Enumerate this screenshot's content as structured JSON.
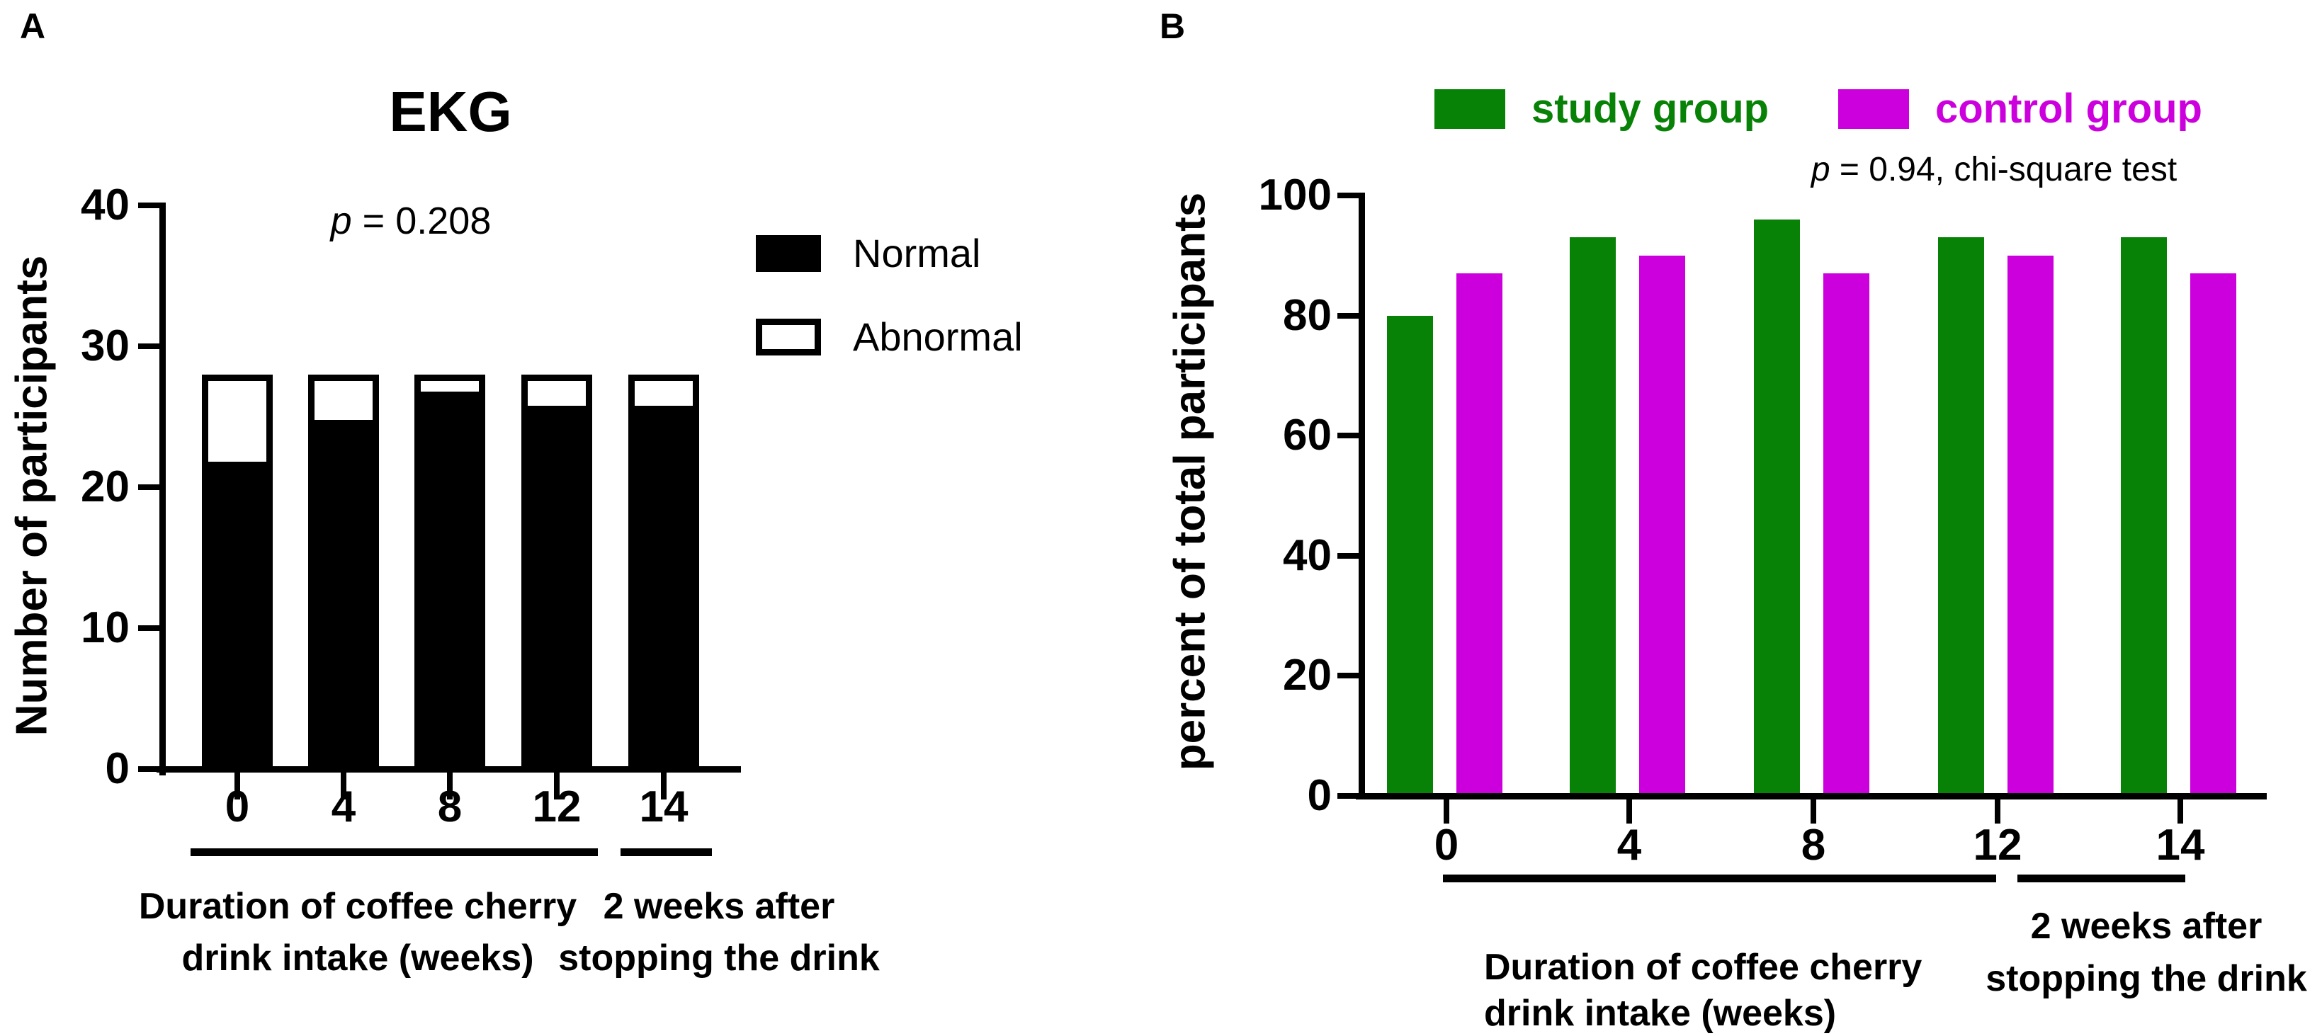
{
  "figure": {
    "panel_a": {
      "label": "A",
      "title": "EKG",
      "p_stat": {
        "symbol": "p",
        "rest": " = 0.208"
      },
      "y_axis_label": "Number of participants",
      "legend": {
        "normal_label": "Normal",
        "abnormal_label": "Abnormal"
      },
      "caption_left_line1": "Duration of coffee cherry",
      "caption_left_line2": "drink intake (weeks)",
      "caption_right_line1": "2 weeks after",
      "caption_right_line2": "stopping the drink"
    },
    "panel_b": {
      "label": "B",
      "legend": {
        "study_label": "study group",
        "control_label": "control group"
      },
      "p_stat": {
        "symbol": "p",
        "rest": " = 0.94, chi-square test"
      },
      "y_axis_label": "percent of total participants",
      "caption_left_line1": "Duration of coffee cherry",
      "caption_left_line2": "drink intake (weeks)",
      "caption_right_line1": "2 weeks after",
      "caption_right_line2": "stopping the drink"
    },
    "colors": {
      "study_green": "#078207",
      "control_magenta": "#cc00dd",
      "normal_black": "#000000",
      "abnormal_white": "#ffffff"
    }
  },
  "chart_data": [
    {
      "panel": "A",
      "type": "bar",
      "stacked": true,
      "title": "EKG",
      "annotation": "p = 0.208",
      "categories": [
        "0",
        "4",
        "8",
        "12",
        "14"
      ],
      "series": [
        {
          "name": "Normal",
          "color": "#000000",
          "values": [
            22,
            25,
            27,
            26,
            26
          ]
        },
        {
          "name": "Abnormal",
          "color": "#ffffff",
          "values": [
            6,
            3,
            1,
            2,
            2
          ]
        }
      ],
      "bar_totals": [
        28,
        28,
        28,
        28,
        28
      ],
      "ylabel": "Number of participants",
      "ylim": [
        0,
        40
      ],
      "yticks": [
        0,
        10,
        20,
        30,
        40
      ],
      "grid": false,
      "legend_position": "right",
      "x_caption_groups": [
        {
          "lines": [
            "Duration of coffee cherry",
            "drink intake (weeks)"
          ],
          "covers_categories": [
            "0",
            "4",
            "8",
            "12"
          ]
        },
        {
          "lines": [
            "2 weeks after",
            "stopping the drink"
          ],
          "covers_categories": [
            "14"
          ]
        }
      ]
    },
    {
      "panel": "B",
      "type": "bar",
      "grouped": true,
      "annotation": "p = 0.94, chi-square test",
      "categories": [
        "0",
        "4",
        "8",
        "12",
        "14"
      ],
      "series": [
        {
          "name": "study group",
          "color": "#078207",
          "values": [
            80,
            93,
            96,
            93,
            93
          ]
        },
        {
          "name": "control group",
          "color": "#cc00dd",
          "values": [
            87,
            90,
            87,
            90,
            87
          ]
        }
      ],
      "ylabel": "percent of total participants",
      "ylim": [
        0,
        100
      ],
      "yticks": [
        0,
        20,
        40,
        60,
        80,
        100
      ],
      "grid": false,
      "legend_position": "top",
      "x_caption_groups": [
        {
          "lines": [
            "Duration of coffee cherry",
            "drink intake (weeks)"
          ],
          "covers_categories": [
            "0",
            "4",
            "8",
            "12"
          ]
        },
        {
          "lines": [
            "2 weeks after",
            "stopping the drink"
          ],
          "covers_categories": [
            "14"
          ]
        }
      ]
    }
  ]
}
